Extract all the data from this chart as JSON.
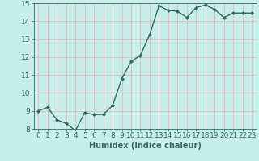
{
  "x": [
    0,
    1,
    2,
    3,
    4,
    5,
    6,
    7,
    8,
    9,
    10,
    11,
    12,
    13,
    14,
    15,
    16,
    17,
    18,
    19,
    20,
    21,
    22,
    23
  ],
  "y": [
    9.0,
    9.2,
    8.5,
    8.3,
    7.9,
    8.9,
    8.8,
    8.8,
    9.3,
    10.8,
    11.75,
    12.1,
    13.25,
    14.85,
    14.6,
    14.55,
    14.2,
    14.75,
    14.9,
    14.65,
    14.2,
    14.45,
    14.45,
    14.45
  ],
  "line_color": "#2e6b5e",
  "marker": "D",
  "marker_size": 2.0,
  "linewidth": 1.0,
  "xlabel": "Humidex (Indice chaleur)",
  "ylim": [
    8,
    15
  ],
  "xlim": [
    -0.5,
    23.5
  ],
  "yticks": [
    8,
    9,
    10,
    11,
    12,
    13,
    14,
    15
  ],
  "xticks": [
    0,
    1,
    2,
    3,
    4,
    5,
    6,
    7,
    8,
    9,
    10,
    11,
    12,
    13,
    14,
    15,
    16,
    17,
    18,
    19,
    20,
    21,
    22,
    23
  ],
  "bg_color": "#c8eeea",
  "grid_color": "#e8b8b8",
  "tick_color": "#2e6b5e",
  "label_color": "#2e6b5e",
  "xlabel_fontsize": 7,
  "tick_fontsize": 6.5
}
